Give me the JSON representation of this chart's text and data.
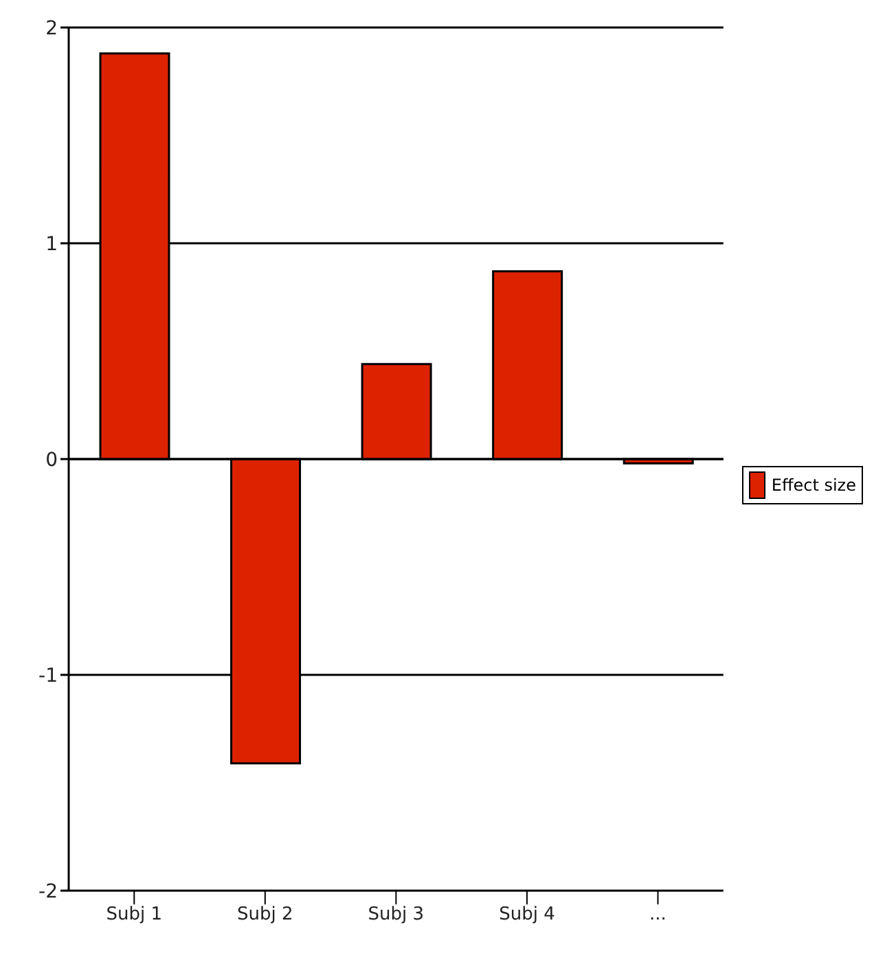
{
  "chart_data": {
    "type": "bar",
    "categories": [
      "Subj 1",
      "Subj 2",
      "Subj 3",
      "Subj 4",
      "..."
    ],
    "series": [
      {
        "name": "Effect size",
        "color": "#dd2200",
        "values": [
          1.88,
          -1.41,
          0.44,
          0.87,
          -0.02
        ]
      }
    ],
    "ylim": [
      -2,
      2
    ],
    "yticks": [
      -2,
      -1,
      0,
      1,
      2
    ],
    "grid": "y",
    "legend": "right"
  }
}
